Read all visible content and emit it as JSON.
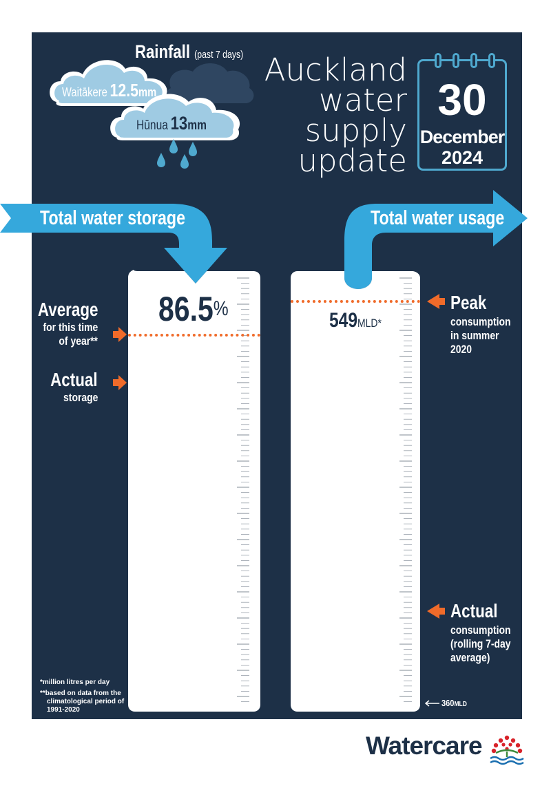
{
  "title": {
    "lines": [
      "Auckland",
      "water",
      "supply",
      "update"
    ]
  },
  "date": {
    "day": "30",
    "month": "December",
    "year": "2024"
  },
  "rainfall": {
    "heading": "Rainfall",
    "period": "(past 7 days)",
    "stations": [
      {
        "name": "Waitākere",
        "amount": "12.5",
        "unit": "mm"
      },
      {
        "name": "Hūnua",
        "amount": "13",
        "unit": "mm"
      }
    ]
  },
  "storage": {
    "header": "Total water storage",
    "value": "86.5",
    "unit": "%",
    "fill_percent": 86.5,
    "average_label": "Average",
    "average_sub1": "for this time",
    "average_sub2": "of year**",
    "actual_label": "Actual",
    "actual_sub": "storage"
  },
  "usage": {
    "header": "Total water usage",
    "value": "549",
    "unit": "MLD*",
    "peak_label": "Peak",
    "peak_sub1": "consumption",
    "peak_sub2": "in summer",
    "peak_sub3": "2020",
    "actual_label": "Actual",
    "actual_sub1": "consumption",
    "actual_sub2": "(rolling 7-day",
    "actual_sub3": "average)",
    "scale_min_value": "360",
    "scale_min_unit": "MLD"
  },
  "footnotes": {
    "note1": "*million litres per day",
    "note2_line1": "**based on data from the",
    "note2_line2": "climatological period of",
    "note2_line3": "1991-2020"
  },
  "brand": {
    "name": "Watercare"
  },
  "colors": {
    "panel": "#1d3047",
    "accent_blue": "#35a8dc",
    "cloud_light": "#9fcbe3",
    "orange": "#f06b2a",
    "tank": "#ffffff"
  }
}
